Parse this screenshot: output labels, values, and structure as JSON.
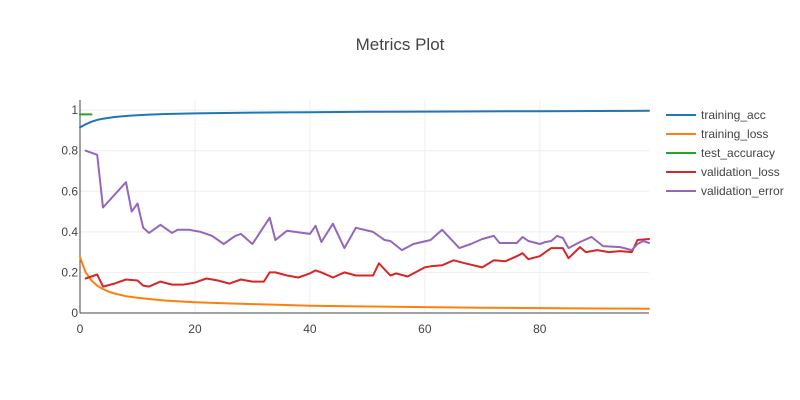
{
  "chart_data": {
    "type": "line",
    "title": "Metrics Plot",
    "xlabel": "",
    "ylabel": "",
    "xlim": [
      0,
      99
    ],
    "ylim": [
      0,
      1.05
    ],
    "x_ticks": [
      0,
      20,
      40,
      60,
      80
    ],
    "y_ticks": [
      0,
      0.2,
      0.4,
      0.6,
      0.8,
      1
    ],
    "x_tick_labels": [
      "0",
      "20",
      "40",
      "60",
      "80"
    ],
    "y_tick_labels": [
      "0",
      "0.2",
      "0.4",
      "0.6",
      "0.8",
      "1"
    ],
    "grid": true,
    "legend_position": "right",
    "series": [
      {
        "name": "training_acc",
        "color": "#1f77b4",
        "x": [
          0,
          1,
          2,
          3,
          4,
          5,
          6,
          8,
          10,
          12,
          15,
          20,
          25,
          30,
          35,
          40,
          50,
          60,
          70,
          80,
          90,
          99
        ],
        "y": [
          0.915,
          0.93,
          0.943,
          0.952,
          0.958,
          0.962,
          0.966,
          0.971,
          0.975,
          0.978,
          0.981,
          0.984,
          0.986,
          0.988,
          0.989,
          0.99,
          0.992,
          0.993,
          0.994,
          0.995,
          0.996,
          0.997
        ]
      },
      {
        "name": "training_loss",
        "color": "#ff7f0e",
        "x": [
          0,
          1,
          2,
          3,
          4,
          5,
          6,
          8,
          10,
          12,
          15,
          20,
          25,
          30,
          35,
          40,
          50,
          60,
          70,
          80,
          90,
          99
        ],
        "y": [
          0.275,
          0.2,
          0.16,
          0.135,
          0.118,
          0.105,
          0.096,
          0.083,
          0.075,
          0.069,
          0.061,
          0.053,
          0.048,
          0.044,
          0.04,
          0.036,
          0.032,
          0.029,
          0.026,
          0.024,
          0.022,
          0.021
        ]
      },
      {
        "name": "test_accuracy",
        "color": "#2ca02c",
        "x": [
          0,
          2
        ],
        "y": [
          0.979,
          0.979
        ]
      },
      {
        "name": "validation_loss",
        "color": "#d62728",
        "x": [
          1,
          3,
          4,
          6,
          8,
          10,
          11,
          12,
          14,
          16,
          18,
          20,
          22,
          24,
          26,
          28,
          30,
          32,
          33,
          34,
          36,
          38,
          40,
          41,
          42,
          44,
          46,
          48,
          51,
          52,
          54,
          55,
          57,
          60,
          61,
          63,
          65,
          67,
          70,
          72,
          74,
          76,
          77,
          78,
          80,
          81,
          82,
          84,
          85,
          87,
          88,
          90,
          92,
          94,
          96,
          97,
          99
        ],
        "y": [
          0.17,
          0.19,
          0.13,
          0.145,
          0.165,
          0.16,
          0.135,
          0.13,
          0.155,
          0.14,
          0.14,
          0.15,
          0.17,
          0.16,
          0.145,
          0.165,
          0.155,
          0.155,
          0.2,
          0.2,
          0.185,
          0.175,
          0.195,
          0.21,
          0.2,
          0.175,
          0.2,
          0.185,
          0.185,
          0.245,
          0.185,
          0.195,
          0.18,
          0.225,
          0.23,
          0.235,
          0.26,
          0.245,
          0.225,
          0.26,
          0.255,
          0.28,
          0.295,
          0.265,
          0.28,
          0.3,
          0.32,
          0.32,
          0.27,
          0.325,
          0.3,
          0.31,
          0.3,
          0.305,
          0.3,
          0.36,
          0.365
        ]
      },
      {
        "name": "validation_error",
        "color": "#9467bd",
        "x": [
          1,
          3,
          4,
          8,
          9,
          10,
          11,
          12,
          14,
          16,
          17,
          19,
          21,
          23,
          25,
          27,
          28,
          30,
          33,
          34,
          36,
          40,
          41,
          42,
          44,
          46,
          48,
          51,
          53,
          54,
          56,
          58,
          61,
          63,
          66,
          68,
          70,
          72,
          73,
          76,
          77,
          78,
          80,
          81,
          82,
          83,
          84,
          85,
          87,
          89,
          91,
          94,
          96,
          97,
          98,
          99
        ],
        "y": [
          0.8,
          0.78,
          0.52,
          0.645,
          0.5,
          0.54,
          0.42,
          0.395,
          0.435,
          0.395,
          0.41,
          0.41,
          0.4,
          0.38,
          0.34,
          0.38,
          0.39,
          0.34,
          0.47,
          0.36,
          0.405,
          0.39,
          0.43,
          0.35,
          0.44,
          0.32,
          0.42,
          0.4,
          0.36,
          0.355,
          0.31,
          0.34,
          0.36,
          0.41,
          0.32,
          0.34,
          0.365,
          0.38,
          0.345,
          0.345,
          0.375,
          0.355,
          0.34,
          0.35,
          0.355,
          0.38,
          0.37,
          0.32,
          0.35,
          0.375,
          0.33,
          0.325,
          0.31,
          0.34,
          0.355,
          0.345
        ]
      }
    ]
  }
}
